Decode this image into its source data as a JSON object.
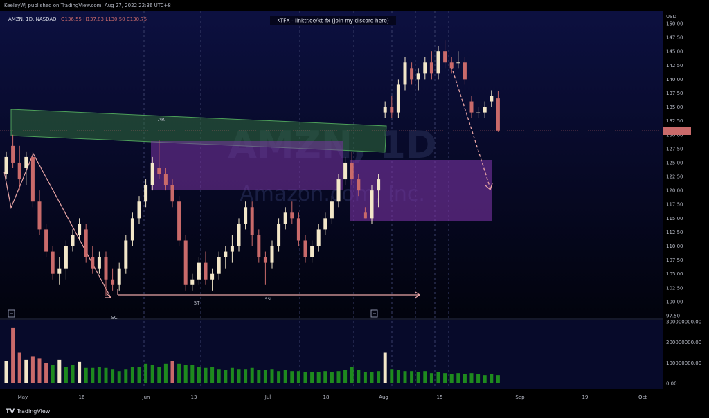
{
  "header": {
    "publisher": "KeeleyWJ published on TradingView.com, Aug 27, 2022 22:36 UTC+8",
    "symbol_line": "AMZN, 1D, NASDAQ",
    "ohlc": "O136.55 H137.83 L130.50 C130.75",
    "banner": "KTFX - linktr.ee/kt_fx (Join my discord here)",
    "currency": "USD"
  },
  "watermark": {
    "ticker": "AMZN, 1D",
    "name": "Amazon.com, Inc."
  },
  "footer": {
    "brand": "TradingView"
  },
  "annotations": {
    "ar": "AR",
    "st": "ST",
    "ssl": "SSL",
    "sc": "SC"
  },
  "colors": {
    "background_top": "#0b0f3a",
    "background_bottom": "#000000",
    "up_candle": "#f3e7c9",
    "down_candle": "#c96a6a",
    "volume_up": "#1e8a1e",
    "supply_zone": "#3f8f4a",
    "demand_zone": "#8a3fb0",
    "axis_text": "#b8bcc8"
  },
  "chart_data": {
    "type": "candlestick",
    "price_axis": {
      "ylim": [
        97.5,
        150
      ],
      "ticks": [
        "150.00",
        "147.50",
        "145.00",
        "142.50",
        "140.00",
        "137.50",
        "135.00",
        "132.50",
        "130.00",
        "127.50",
        "125.00",
        "122.50",
        "120.00",
        "117.50",
        "115.00",
        "112.50",
        "110.00",
        "107.50",
        "105.00",
        "102.50",
        "100.00",
        "97.50"
      ]
    },
    "volume_axis": {
      "ylim": [
        0,
        300000000
      ],
      "ticks": [
        "300000000.00",
        "200000000.00",
        "100000000.00",
        "0.00"
      ]
    },
    "time_axis": {
      "ticks": [
        "May",
        "16",
        "Jun",
        "13",
        "Jul",
        "18",
        "Aug",
        "15",
        "Sep",
        "19",
        "Oct"
      ]
    },
    "candles": [
      {
        "o": 123,
        "h": 127,
        "l": 122,
        "c": 126
      },
      {
        "o": 128,
        "h": 130,
        "l": 124,
        "c": 125
      },
      {
        "o": 125,
        "h": 128,
        "l": 120,
        "c": 122
      },
      {
        "o": 124,
        "h": 127,
        "l": 121,
        "c": 126
      },
      {
        "o": 126,
        "h": 127,
        "l": 117,
        "c": 118
      },
      {
        "o": 118,
        "h": 120,
        "l": 112,
        "c": 113
      },
      {
        "o": 113,
        "h": 114,
        "l": 108,
        "c": 109
      },
      {
        "o": 109,
        "h": 110,
        "l": 104,
        "c": 105
      },
      {
        "o": 105,
        "h": 108,
        "l": 103,
        "c": 106
      },
      {
        "o": 106,
        "h": 111,
        "l": 104,
        "c": 110
      },
      {
        "o": 110,
        "h": 113,
        "l": 109,
        "c": 112
      },
      {
        "o": 112,
        "h": 115,
        "l": 111,
        "c": 114
      },
      {
        "o": 113,
        "h": 114,
        "l": 107,
        "c": 108
      },
      {
        "o": 108,
        "h": 110,
        "l": 105,
        "c": 106
      },
      {
        "o": 106,
        "h": 109,
        "l": 105,
        "c": 108
      },
      {
        "o": 108,
        "h": 109,
        "l": 101,
        "c": 104
      },
      {
        "o": 104,
        "h": 106,
        "l": 102,
        "c": 103
      },
      {
        "o": 103,
        "h": 107,
        "l": 102,
        "c": 106
      },
      {
        "o": 106,
        "h": 112,
        "l": 105,
        "c": 111
      },
      {
        "o": 111,
        "h": 116,
        "l": 110,
        "c": 115
      },
      {
        "o": 115,
        "h": 119,
        "l": 114,
        "c": 118
      },
      {
        "o": 118,
        "h": 122,
        "l": 117,
        "c": 121
      },
      {
        "o": 121,
        "h": 126,
        "l": 120,
        "c": 125
      },
      {
        "o": 124,
        "h": 129,
        "l": 122,
        "c": 123
      },
      {
        "o": 123,
        "h": 124,
        "l": 120,
        "c": 121
      },
      {
        "o": 121,
        "h": 122,
        "l": 117,
        "c": 118
      },
      {
        "o": 118,
        "h": 119,
        "l": 110,
        "c": 111
      },
      {
        "o": 111,
        "h": 112,
        "l": 102,
        "c": 103
      },
      {
        "o": 103,
        "h": 105,
        "l": 102,
        "c": 104
      },
      {
        "o": 104,
        "h": 108,
        "l": 103,
        "c": 107
      },
      {
        "o": 107,
        "h": 109,
        "l": 103,
        "c": 104
      },
      {
        "o": 104,
        "h": 106,
        "l": 102,
        "c": 105
      },
      {
        "o": 105,
        "h": 109,
        "l": 104,
        "c": 108
      },
      {
        "o": 108,
        "h": 110,
        "l": 106,
        "c": 109
      },
      {
        "o": 109,
        "h": 112,
        "l": 107,
        "c": 110
      },
      {
        "o": 110,
        "h": 115,
        "l": 109,
        "c": 114
      },
      {
        "o": 114,
        "h": 118,
        "l": 113,
        "c": 117
      },
      {
        "o": 117,
        "h": 118,
        "l": 110,
        "c": 112
      },
      {
        "o": 112,
        "h": 113,
        "l": 107,
        "c": 108
      },
      {
        "o": 108,
        "h": 109,
        "l": 103,
        "c": 107
      },
      {
        "o": 107,
        "h": 111,
        "l": 106,
        "c": 110
      },
      {
        "o": 110,
        "h": 115,
        "l": 109,
        "c": 114
      },
      {
        "o": 114,
        "h": 117,
        "l": 113,
        "c": 116
      },
      {
        "o": 116,
        "h": 118,
        "l": 114,
        "c": 115
      },
      {
        "o": 115,
        "h": 116,
        "l": 110,
        "c": 111
      },
      {
        "o": 111,
        "h": 112,
        "l": 107,
        "c": 108
      },
      {
        "o": 108,
        "h": 111,
        "l": 107,
        "c": 110
      },
      {
        "o": 110,
        "h": 114,
        "l": 109,
        "c": 113
      },
      {
        "o": 113,
        "h": 116,
        "l": 112,
        "c": 115
      },
      {
        "o": 115,
        "h": 119,
        "l": 114,
        "c": 118
      },
      {
        "o": 118,
        "h": 123,
        "l": 117,
        "c": 122
      },
      {
        "o": 122,
        "h": 126,
        "l": 121,
        "c": 125
      },
      {
        "o": 125,
        "h": 127,
        "l": 121,
        "c": 122
      },
      {
        "o": 122,
        "h": 123,
        "l": 119,
        "c": 120
      },
      {
        "o": 116,
        "h": 117,
        "l": 115,
        "c": 115
      },
      {
        "o": 115,
        "h": 121,
        "l": 114,
        "c": 120
      },
      {
        "o": 120,
        "h": 123,
        "l": 117,
        "c": 122
      },
      {
        "o": 134,
        "h": 136,
        "l": 133,
        "c": 135
      },
      {
        "o": 135,
        "h": 137,
        "l": 133,
        "c": 134
      },
      {
        "o": 134,
        "h": 140,
        "l": 133,
        "c": 139
      },
      {
        "o": 139,
        "h": 144,
        "l": 138,
        "c": 143
      },
      {
        "o": 142,
        "h": 143,
        "l": 139,
        "c": 140
      },
      {
        "o": 140,
        "h": 142,
        "l": 138,
        "c": 141
      },
      {
        "o": 141,
        "h": 144,
        "l": 140,
        "c": 143
      },
      {
        "o": 143,
        "h": 145,
        "l": 140,
        "c": 141
      },
      {
        "o": 141,
        "h": 146,
        "l": 140,
        "c": 145
      },
      {
        "o": 145,
        "h": 147,
        "l": 142,
        "c": 143
      },
      {
        "o": 143,
        "h": 144,
        "l": 141,
        "c": 142
      },
      {
        "o": 143,
        "h": 145,
        "l": 142,
        "c": 143
      },
      {
        "o": 143,
        "h": 144,
        "l": 139,
        "c": 140
      },
      {
        "o": 136,
        "h": 137,
        "l": 133,
        "c": 134
      },
      {
        "o": 134,
        "h": 135,
        "l": 133,
        "c": 134
      },
      {
        "o": 134,
        "h": 136,
        "l": 133,
        "c": 135
      },
      {
        "o": 136,
        "h": 138,
        "l": 135,
        "c": 137
      },
      {
        "o": 136.55,
        "h": 137.83,
        "l": 130.5,
        "c": 130.75
      }
    ],
    "volumes": [
      110,
      270,
      150,
      115,
      130,
      120,
      100,
      90,
      115,
      80,
      90,
      105,
      75,
      75,
      80,
      75,
      70,
      60,
      70,
      80,
      80,
      95,
      90,
      80,
      95,
      110,
      95,
      90,
      90,
      80,
      75,
      80,
      70,
      65,
      75,
      70,
      70,
      75,
      65,
      65,
      70,
      60,
      65,
      60,
      60,
      55,
      55,
      55,
      60,
      55,
      60,
      65,
      80,
      65,
      55,
      55,
      60,
      150,
      70,
      65,
      60,
      60,
      55,
      60,
      50,
      55,
      50,
      45,
      50,
      45,
      50,
      45,
      40,
      45,
      40
    ]
  }
}
